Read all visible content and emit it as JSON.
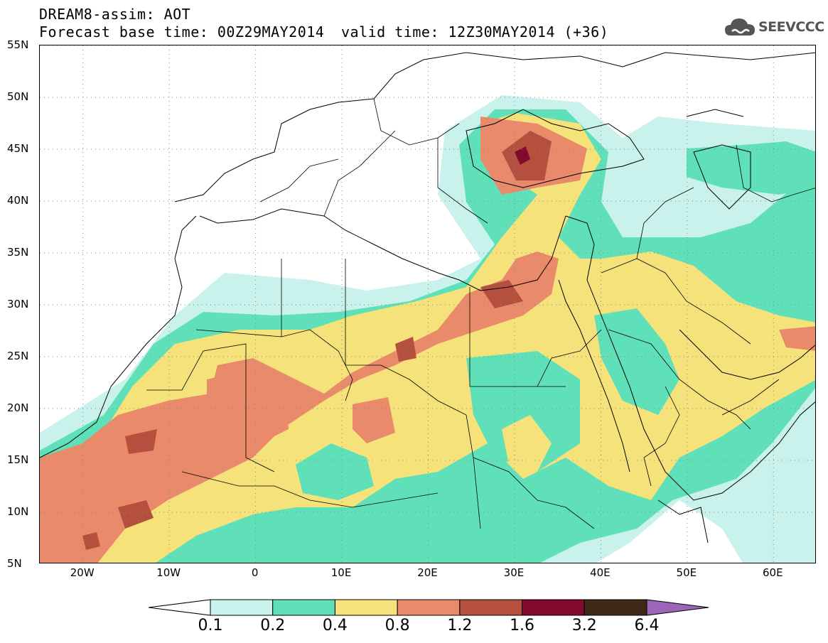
{
  "header": {
    "title_line1": "DREAM8-assim: AOT",
    "title_line2": "Forecast base time: 00Z29MAY2014",
    "valid_time": "valid time: 12Z30MAY2014 (+36)"
  },
  "logo": {
    "text": "SEEVCCC",
    "icon": "cloud-logo-icon"
  },
  "map": {
    "lat_labels": [
      "55N",
      "50N",
      "45N",
      "40N",
      "35N",
      "30N",
      "25N",
      "20N",
      "15N",
      "10N",
      "5N"
    ],
    "lon_labels": [
      "20W",
      "10W",
      "0",
      "10E",
      "20E",
      "30E",
      "40E",
      "50E",
      "60E"
    ],
    "lat_range": [
      5,
      55
    ],
    "lon_range": [
      -25,
      65
    ],
    "grid": true
  },
  "colorbar": {
    "labels": [
      "0.1",
      "0.2",
      "0.4",
      "0.8",
      "1.2",
      "1.6",
      "3.2",
      "6.4"
    ],
    "colors": [
      "#ffffff",
      "#c9f2ec",
      "#5fe0b8",
      "#f5e27a",
      "#e98a6a",
      "#b5503f",
      "#820b2d",
      "#3f2a18",
      "#9b66b8"
    ]
  }
}
